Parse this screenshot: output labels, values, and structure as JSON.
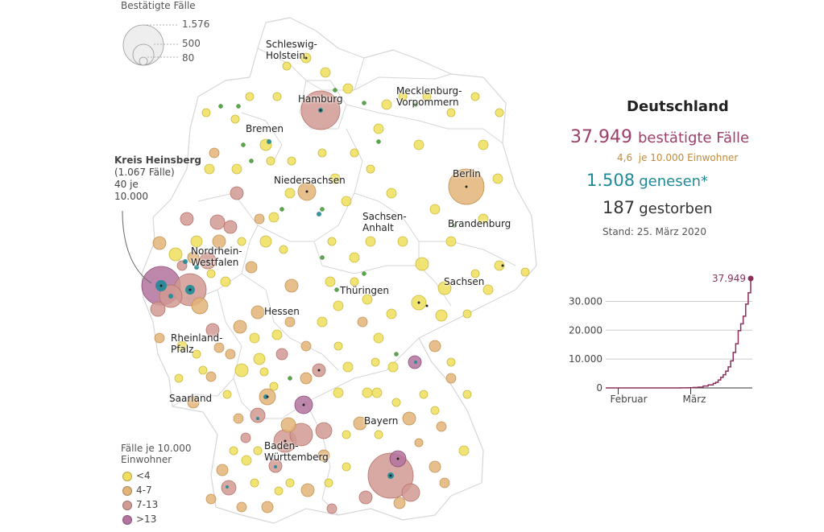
{
  "bubble_legend": {
    "title": "Bestätigte Fälle",
    "values": [
      "1.576",
      "500",
      "80"
    ]
  },
  "annotation": {
    "title": "Kreis Heinsberg",
    "line1": "(1.067 Fälle)",
    "line2": "40 je",
    "line3": "10.000"
  },
  "regions": [
    {
      "name": "Schleswig-Holstein",
      "lines": [
        "Schleswig-",
        "Holstein"
      ]
    },
    {
      "name": "Hamburg",
      "lines": [
        "Hamburg"
      ]
    },
    {
      "name": "Mecklenburg-Vorpommern",
      "lines": [
        "Mecklenburg-",
        "Vorpommern"
      ]
    },
    {
      "name": "Bremen",
      "lines": [
        "Bremen"
      ]
    },
    {
      "name": "Berlin",
      "lines": [
        "Berlin"
      ]
    },
    {
      "name": "Niedersachsen",
      "lines": [
        "Niedersachsen"
      ]
    },
    {
      "name": "Sachsen-Anhalt",
      "lines": [
        "Sachsen-",
        "Anhalt"
      ]
    },
    {
      "name": "Brandenburg",
      "lines": [
        "Brandenburg"
      ]
    },
    {
      "name": "Nordrhein-Westfalen",
      "lines": [
        "Nordrhein-",
        "Westfalen"
      ]
    },
    {
      "name": "Sachsen",
      "lines": [
        "Sachsen"
      ]
    },
    {
      "name": "Thüringen",
      "lines": [
        "Thüringen"
      ]
    },
    {
      "name": "Hessen",
      "lines": [
        "Hessen"
      ]
    },
    {
      "name": "Rheinland-Pfalz",
      "lines": [
        "Rheinland-",
        "Pfalz"
      ]
    },
    {
      "name": "Saarland",
      "lines": [
        "Saarland"
      ]
    },
    {
      "name": "Bayern",
      "lines": [
        "Bayern"
      ]
    },
    {
      "name": "Baden-Württemberg",
      "lines": [
        "Baden-",
        "Württemberg"
      ]
    }
  ],
  "color_legend": {
    "title_line1": "Fälle je 10.000",
    "title_line2": "Einwohner",
    "items": [
      {
        "label": "<4",
        "color": "#f0df5c"
      },
      {
        "label": "4-7",
        "color": "#e3b478"
      },
      {
        "label": "7-13",
        "color": "#d19a92"
      },
      {
        "label": ">13",
        "color": "#b3739f"
      }
    ]
  },
  "summary": {
    "title": "Deutschland",
    "cases": "37.949",
    "cases_label": "bestätigte Fälle",
    "per10k": "4,6",
    "per10k_label": "je 10.000 Einwohner",
    "recovered": "1.508",
    "recovered_label": "genesen*",
    "deaths": "187",
    "deaths_label": "gestorben",
    "stand": "Stand: 25. März 2020"
  },
  "colors": {
    "cases": "#9b3f6b",
    "per10k": "#c28a3a",
    "recovered": "#1f8a97",
    "line": "#8a2f5c"
  },
  "chart_data": {
    "type": "line",
    "title": "",
    "xlabel": "",
    "ylabel": "",
    "x_tick_labels": [
      "Februar",
      "März"
    ],
    "y_ticks": [
      0,
      10000,
      20000,
      30000
    ],
    "y_tick_labels": [
      "0",
      "10.000",
      "20.000",
      "30.000"
    ],
    "ylim": [
      0,
      38500
    ],
    "end_label": "37.949",
    "series": [
      {
        "x": [
          "2020-01-27",
          "2020-02-01",
          "2020-02-08",
          "2020-02-15",
          "2020-02-22",
          "2020-02-26",
          "2020-02-29",
          "2020-03-02",
          "2020-03-04",
          "2020-03-06",
          "2020-03-08",
          "2020-03-10",
          "2020-03-11",
          "2020-03-12",
          "2020-03-13",
          "2020-03-14",
          "2020-03-15",
          "2020-03-16",
          "2020-03-17",
          "2020-03-18",
          "2020-03-19",
          "2020-03-20",
          "2020-03-21",
          "2020-03-22",
          "2020-03-23",
          "2020-03-24",
          "2020-03-25"
        ],
        "y": [
          1,
          8,
          14,
          16,
          16,
          27,
          79,
          157,
          262,
          670,
          1040,
          1565,
          1966,
          2745,
          3675,
          4585,
          5813,
          7272,
          9367,
          12327,
          15320,
          19848,
          22213,
          24873,
          29056,
          32991,
          37949
        ]
      }
    ]
  }
}
